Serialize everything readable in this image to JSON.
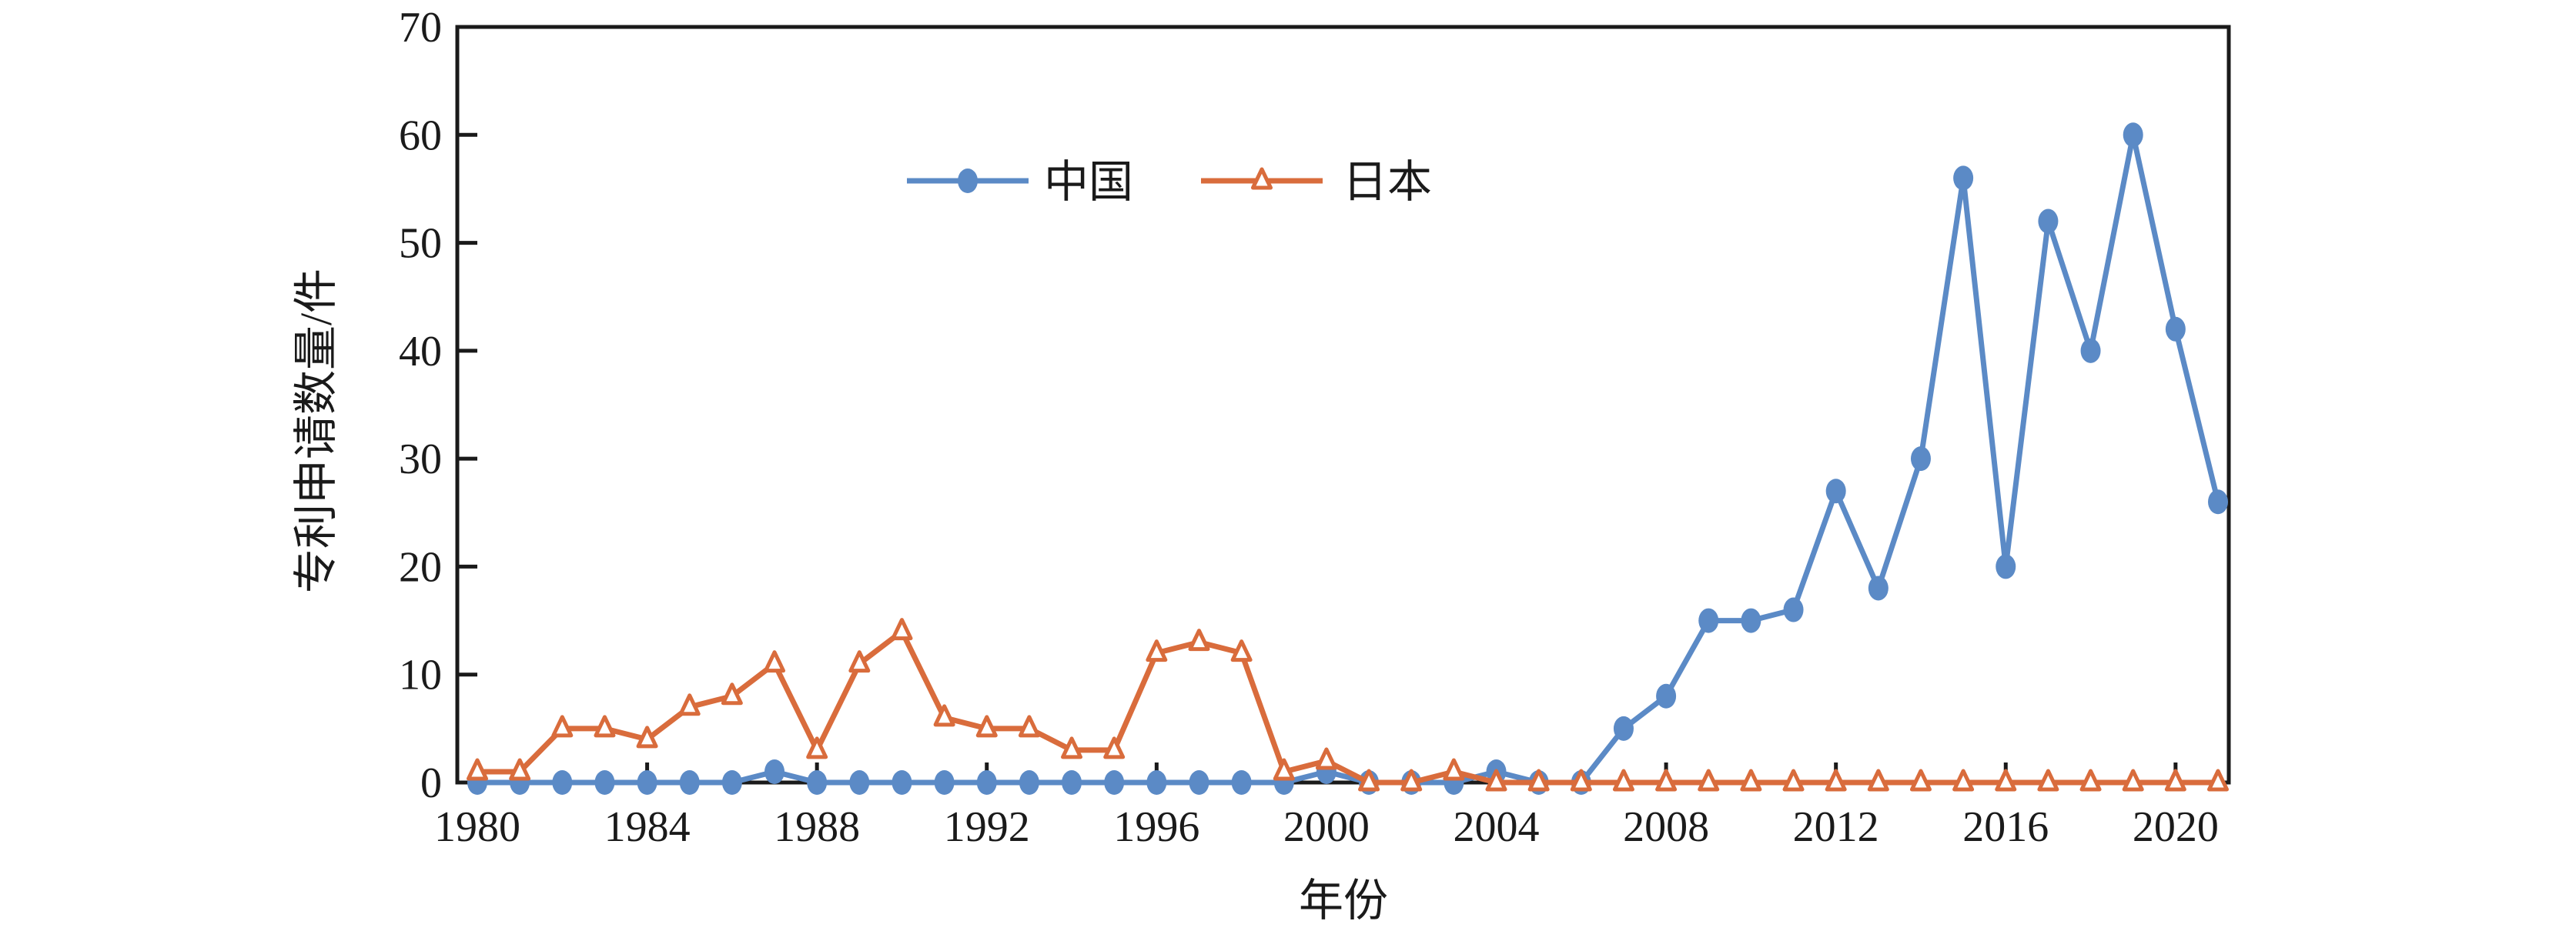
{
  "chart_data": {
    "type": "line",
    "title": "",
    "xlabel": "年份",
    "ylabel": "专利申请数量/件",
    "x": [
      1980,
      1981,
      1982,
      1983,
      1984,
      1985,
      1986,
      1987,
      1988,
      1989,
      1990,
      1991,
      1992,
      1993,
      1994,
      1995,
      1996,
      1997,
      1998,
      1999,
      2000,
      2001,
      2002,
      2003,
      2004,
      2005,
      2006,
      2007,
      2008,
      2009,
      2010,
      2011,
      2012,
      2013,
      2014,
      2015,
      2016,
      2017,
      2018,
      2019,
      2020,
      2021
    ],
    "x_tick_labels": [
      "1980",
      "1984",
      "1988",
      "1992",
      "1996",
      "2000",
      "2004",
      "2008",
      "2012",
      "2016",
      "2020"
    ],
    "y_ticks": [
      "0",
      "10",
      "20",
      "30",
      "40",
      "50",
      "60",
      "70"
    ],
    "ylim": [
      0,
      70
    ],
    "grid": false,
    "legend_position": "top-center-inside",
    "series": [
      {
        "name": "中国",
        "marker": "filled-circle",
        "color": "#5B8AC6",
        "values": [
          0,
          0,
          0,
          0,
          0,
          0,
          0,
          1,
          0,
          0,
          0,
          0,
          0,
          0,
          0,
          0,
          0,
          0,
          0,
          0,
          1,
          0,
          0,
          0,
          1,
          0,
          0,
          5,
          8,
          15,
          15,
          16,
          27,
          18,
          30,
          56,
          20,
          52,
          40,
          60,
          42,
          26
        ]
      },
      {
        "name": "日本",
        "marker": "open-triangle",
        "color": "#D96C3C",
        "values": [
          1,
          1,
          5,
          5,
          4,
          7,
          8,
          11,
          3,
          11,
          14,
          6,
          5,
          5,
          3,
          3,
          12,
          13,
          12,
          1,
          2,
          0,
          0,
          1,
          0,
          0,
          0,
          0,
          0,
          0,
          0,
          0,
          0,
          0,
          0,
          0,
          0,
          0,
          0,
          0,
          0,
          0
        ]
      }
    ]
  },
  "colors": {
    "axis": "#1a1a1a",
    "background": "#ffffff",
    "china_line": "#5B8AC6",
    "japan_line": "#D96C3C"
  }
}
